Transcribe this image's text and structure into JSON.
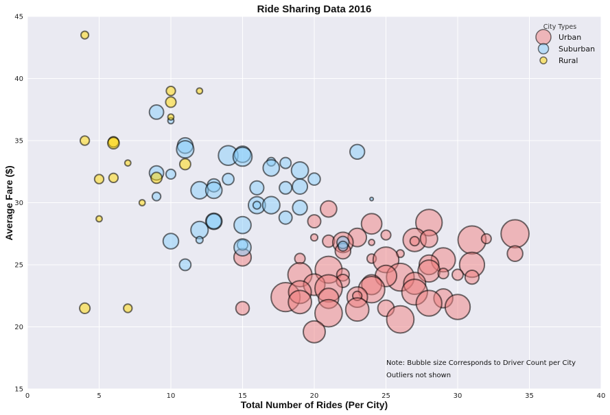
{
  "chart_data": {
    "type": "scatter",
    "title": "Ride Sharing Data 2016",
    "xlabel": "Total Number of Rides (Per City)",
    "ylabel": "Average Fare ($)",
    "xlim": [
      0,
      40
    ],
    "ylim": [
      15,
      45
    ],
    "xticks": [
      "0",
      "5",
      "10",
      "15",
      "20",
      "25",
      "30",
      "35",
      "40"
    ],
    "yticks": [
      "15",
      "20",
      "25",
      "30",
      "35",
      "40",
      "45"
    ],
    "grid": true,
    "legend": {
      "title": "City Types",
      "placement": "top-right",
      "entries": [
        "Urban",
        "Suburban",
        "Rural"
      ]
    },
    "notes": [
      "Note: Bubble size Corresponds to Driver Count per City",
      "Outliers not shown"
    ],
    "size_encoding": "driver count",
    "series": [
      {
        "name": "Urban",
        "color": "#F08080",
        "points": [
          {
            "x": 21,
            "y": 29.5,
            "s": 22
          },
          {
            "x": 20,
            "y": 28.5,
            "s": 14
          },
          {
            "x": 24,
            "y": 28.3,
            "s": 35
          },
          {
            "x": 28,
            "y": 28.4,
            "s": 58
          },
          {
            "x": 25,
            "y": 27.4,
            "s": 8
          },
          {
            "x": 23,
            "y": 27.2,
            "s": 28
          },
          {
            "x": 27,
            "y": 27.0,
            "s": 45
          },
          {
            "x": 28,
            "y": 27.1,
            "s": 25
          },
          {
            "x": 31,
            "y": 27.0,
            "s": 65
          },
          {
            "x": 32,
            "y": 27.1,
            "s": 8
          },
          {
            "x": 34,
            "y": 27.5,
            "s": 65
          },
          {
            "x": 20,
            "y": 27.2,
            "s": 4
          },
          {
            "x": 21,
            "y": 26.9,
            "s": 12
          },
          {
            "x": 22,
            "y": 26.8,
            "s": 35
          },
          {
            "x": 24,
            "y": 26.8,
            "s": 3
          },
          {
            "x": 27,
            "y": 26.9,
            "s": 7
          },
          {
            "x": 22,
            "y": 26.1,
            "s": 20
          },
          {
            "x": 26,
            "y": 25.9,
            "s": 5
          },
          {
            "x": 34,
            "y": 25.9,
            "s": 20
          },
          {
            "x": 19,
            "y": 25.5,
            "s": 9
          },
          {
            "x": 24,
            "y": 25.5,
            "s": 7
          },
          {
            "x": 25,
            "y": 25.4,
            "s": 55
          },
          {
            "x": 29,
            "y": 25.4,
            "s": 48
          },
          {
            "x": 15,
            "y": 25.6,
            "s": 25
          },
          {
            "x": 28,
            "y": 25.0,
            "s": 32
          },
          {
            "x": 31,
            "y": 25.0,
            "s": 52
          },
          {
            "x": 21,
            "y": 24.6,
            "s": 60
          },
          {
            "x": 28,
            "y": 24.5,
            "s": 40
          },
          {
            "x": 26,
            "y": 24.0,
            "s": 64
          },
          {
            "x": 25,
            "y": 24.1,
            "s": 38
          },
          {
            "x": 19,
            "y": 24.2,
            "s": 48
          },
          {
            "x": 22,
            "y": 24.2,
            "s": 13
          },
          {
            "x": 24,
            "y": 23.4,
            "s": 33
          },
          {
            "x": 27,
            "y": 23.5,
            "s": 40
          },
          {
            "x": 29,
            "y": 24.3,
            "s": 9
          },
          {
            "x": 30,
            "y": 24.2,
            "s": 10
          },
          {
            "x": 31,
            "y": 24.0,
            "s": 16
          },
          {
            "x": 20,
            "y": 23.4,
            "s": 38
          },
          {
            "x": 22,
            "y": 23.7,
            "s": 14
          },
          {
            "x": 21,
            "y": 23.1,
            "s": 62
          },
          {
            "x": 24,
            "y": 23.0,
            "s": 58
          },
          {
            "x": 27,
            "y": 22.8,
            "s": 55
          },
          {
            "x": 18,
            "y": 22.4,
            "s": 70
          },
          {
            "x": 19,
            "y": 22.8,
            "s": 43
          },
          {
            "x": 21,
            "y": 22.3,
            "s": 34
          },
          {
            "x": 23,
            "y": 22.4,
            "s": 35
          },
          {
            "x": 23,
            "y": 22.5,
            "s": 7
          },
          {
            "x": 29,
            "y": 22.3,
            "s": 30
          },
          {
            "x": 19,
            "y": 22.0,
            "s": 45
          },
          {
            "x": 28,
            "y": 21.9,
            "s": 55
          },
          {
            "x": 30,
            "y": 21.6,
            "s": 52
          },
          {
            "x": 15,
            "y": 21.5,
            "s": 15
          },
          {
            "x": 23,
            "y": 21.4,
            "s": 45
          },
          {
            "x": 25,
            "y": 21.5,
            "s": 22
          },
          {
            "x": 21,
            "y": 21.1,
            "s": 62
          },
          {
            "x": 26,
            "y": 20.6,
            "s": 62
          },
          {
            "x": 20,
            "y": 19.6,
            "s": 40
          }
        ]
      },
      {
        "name": "Suburban",
        "color": "#87CEFA",
        "points": [
          {
            "x": 9,
            "y": 37.3,
            "s": 17
          },
          {
            "x": 10,
            "y": 36.6,
            "s": 3
          },
          {
            "x": 11,
            "y": 34.6,
            "s": 20
          },
          {
            "x": 11,
            "y": 34.3,
            "s": 25
          },
          {
            "x": 14,
            "y": 33.8,
            "s": 32
          },
          {
            "x": 15,
            "y": 33.9,
            "s": 22
          },
          {
            "x": 15,
            "y": 33.7,
            "s": 30
          },
          {
            "x": 17,
            "y": 33.3,
            "s": 6
          },
          {
            "x": 17,
            "y": 32.8,
            "s": 22
          },
          {
            "x": 18,
            "y": 33.2,
            "s": 10
          },
          {
            "x": 19,
            "y": 32.6,
            "s": 24
          },
          {
            "x": 20,
            "y": 31.9,
            "s": 12
          },
          {
            "x": 23,
            "y": 34.1,
            "s": 18
          },
          {
            "x": 9,
            "y": 32.4,
            "s": 17
          },
          {
            "x": 10,
            "y": 32.3,
            "s": 8
          },
          {
            "x": 12,
            "y": 31.0,
            "s": 25
          },
          {
            "x": 13,
            "y": 31.4,
            "s": 14
          },
          {
            "x": 13,
            "y": 31.0,
            "s": 22
          },
          {
            "x": 14,
            "y": 31.9,
            "s": 11
          },
          {
            "x": 16,
            "y": 31.2,
            "s": 16
          },
          {
            "x": 18,
            "y": 31.2,
            "s": 13
          },
          {
            "x": 19,
            "y": 31.3,
            "s": 19
          },
          {
            "x": 9,
            "y": 30.5,
            "s": 6
          },
          {
            "x": 24,
            "y": 30.3,
            "s": 1
          },
          {
            "x": 16,
            "y": 29.8,
            "s": 24
          },
          {
            "x": 16,
            "y": 29.8,
            "s": 5
          },
          {
            "x": 17,
            "y": 29.8,
            "s": 25
          },
          {
            "x": 19,
            "y": 29.6,
            "s": 18
          },
          {
            "x": 18,
            "y": 28.8,
            "s": 14
          },
          {
            "x": 13,
            "y": 28.5,
            "s": 22
          },
          {
            "x": 13,
            "y": 28.5,
            "s": 19
          },
          {
            "x": 15,
            "y": 28.2,
            "s": 24
          },
          {
            "x": 12,
            "y": 27.8,
            "s": 25
          },
          {
            "x": 12,
            "y": 27.0,
            "s": 4
          },
          {
            "x": 10,
            "y": 26.9,
            "s": 20
          },
          {
            "x": 22,
            "y": 26.8,
            "s": 12
          },
          {
            "x": 22,
            "y": 26.5,
            "s": 8
          },
          {
            "x": 15,
            "y": 26.6,
            "s": 9
          },
          {
            "x": 15,
            "y": 26.4,
            "s": 24
          },
          {
            "x": 11,
            "y": 25.0,
            "s": 11
          }
        ]
      },
      {
        "name": "Rural",
        "color": "#FFD700",
        "points": [
          {
            "x": 4,
            "y": 43.5,
            "s": 5
          },
          {
            "x": 10,
            "y": 39.0,
            "s": 7
          },
          {
            "x": 12,
            "y": 39.0,
            "s": 3
          },
          {
            "x": 10,
            "y": 38.1,
            "s": 9
          },
          {
            "x": 10,
            "y": 36.9,
            "s": 3
          },
          {
            "x": 4,
            "y": 35.0,
            "s": 7
          },
          {
            "x": 6,
            "y": 34.9,
            "s": 9
          },
          {
            "x": 6,
            "y": 34.8,
            "s": 11
          },
          {
            "x": 7,
            "y": 33.2,
            "s": 3
          },
          {
            "x": 11,
            "y": 33.1,
            "s": 10
          },
          {
            "x": 5,
            "y": 31.9,
            "s": 7
          },
          {
            "x": 6,
            "y": 32.0,
            "s": 7
          },
          {
            "x": 9,
            "y": 32.0,
            "s": 10
          },
          {
            "x": 8,
            "y": 30.0,
            "s": 3
          },
          {
            "x": 5,
            "y": 28.7,
            "s": 3
          },
          {
            "x": 4,
            "y": 21.5,
            "s": 9
          },
          {
            "x": 7,
            "y": 21.5,
            "s": 6
          }
        ]
      }
    ]
  }
}
